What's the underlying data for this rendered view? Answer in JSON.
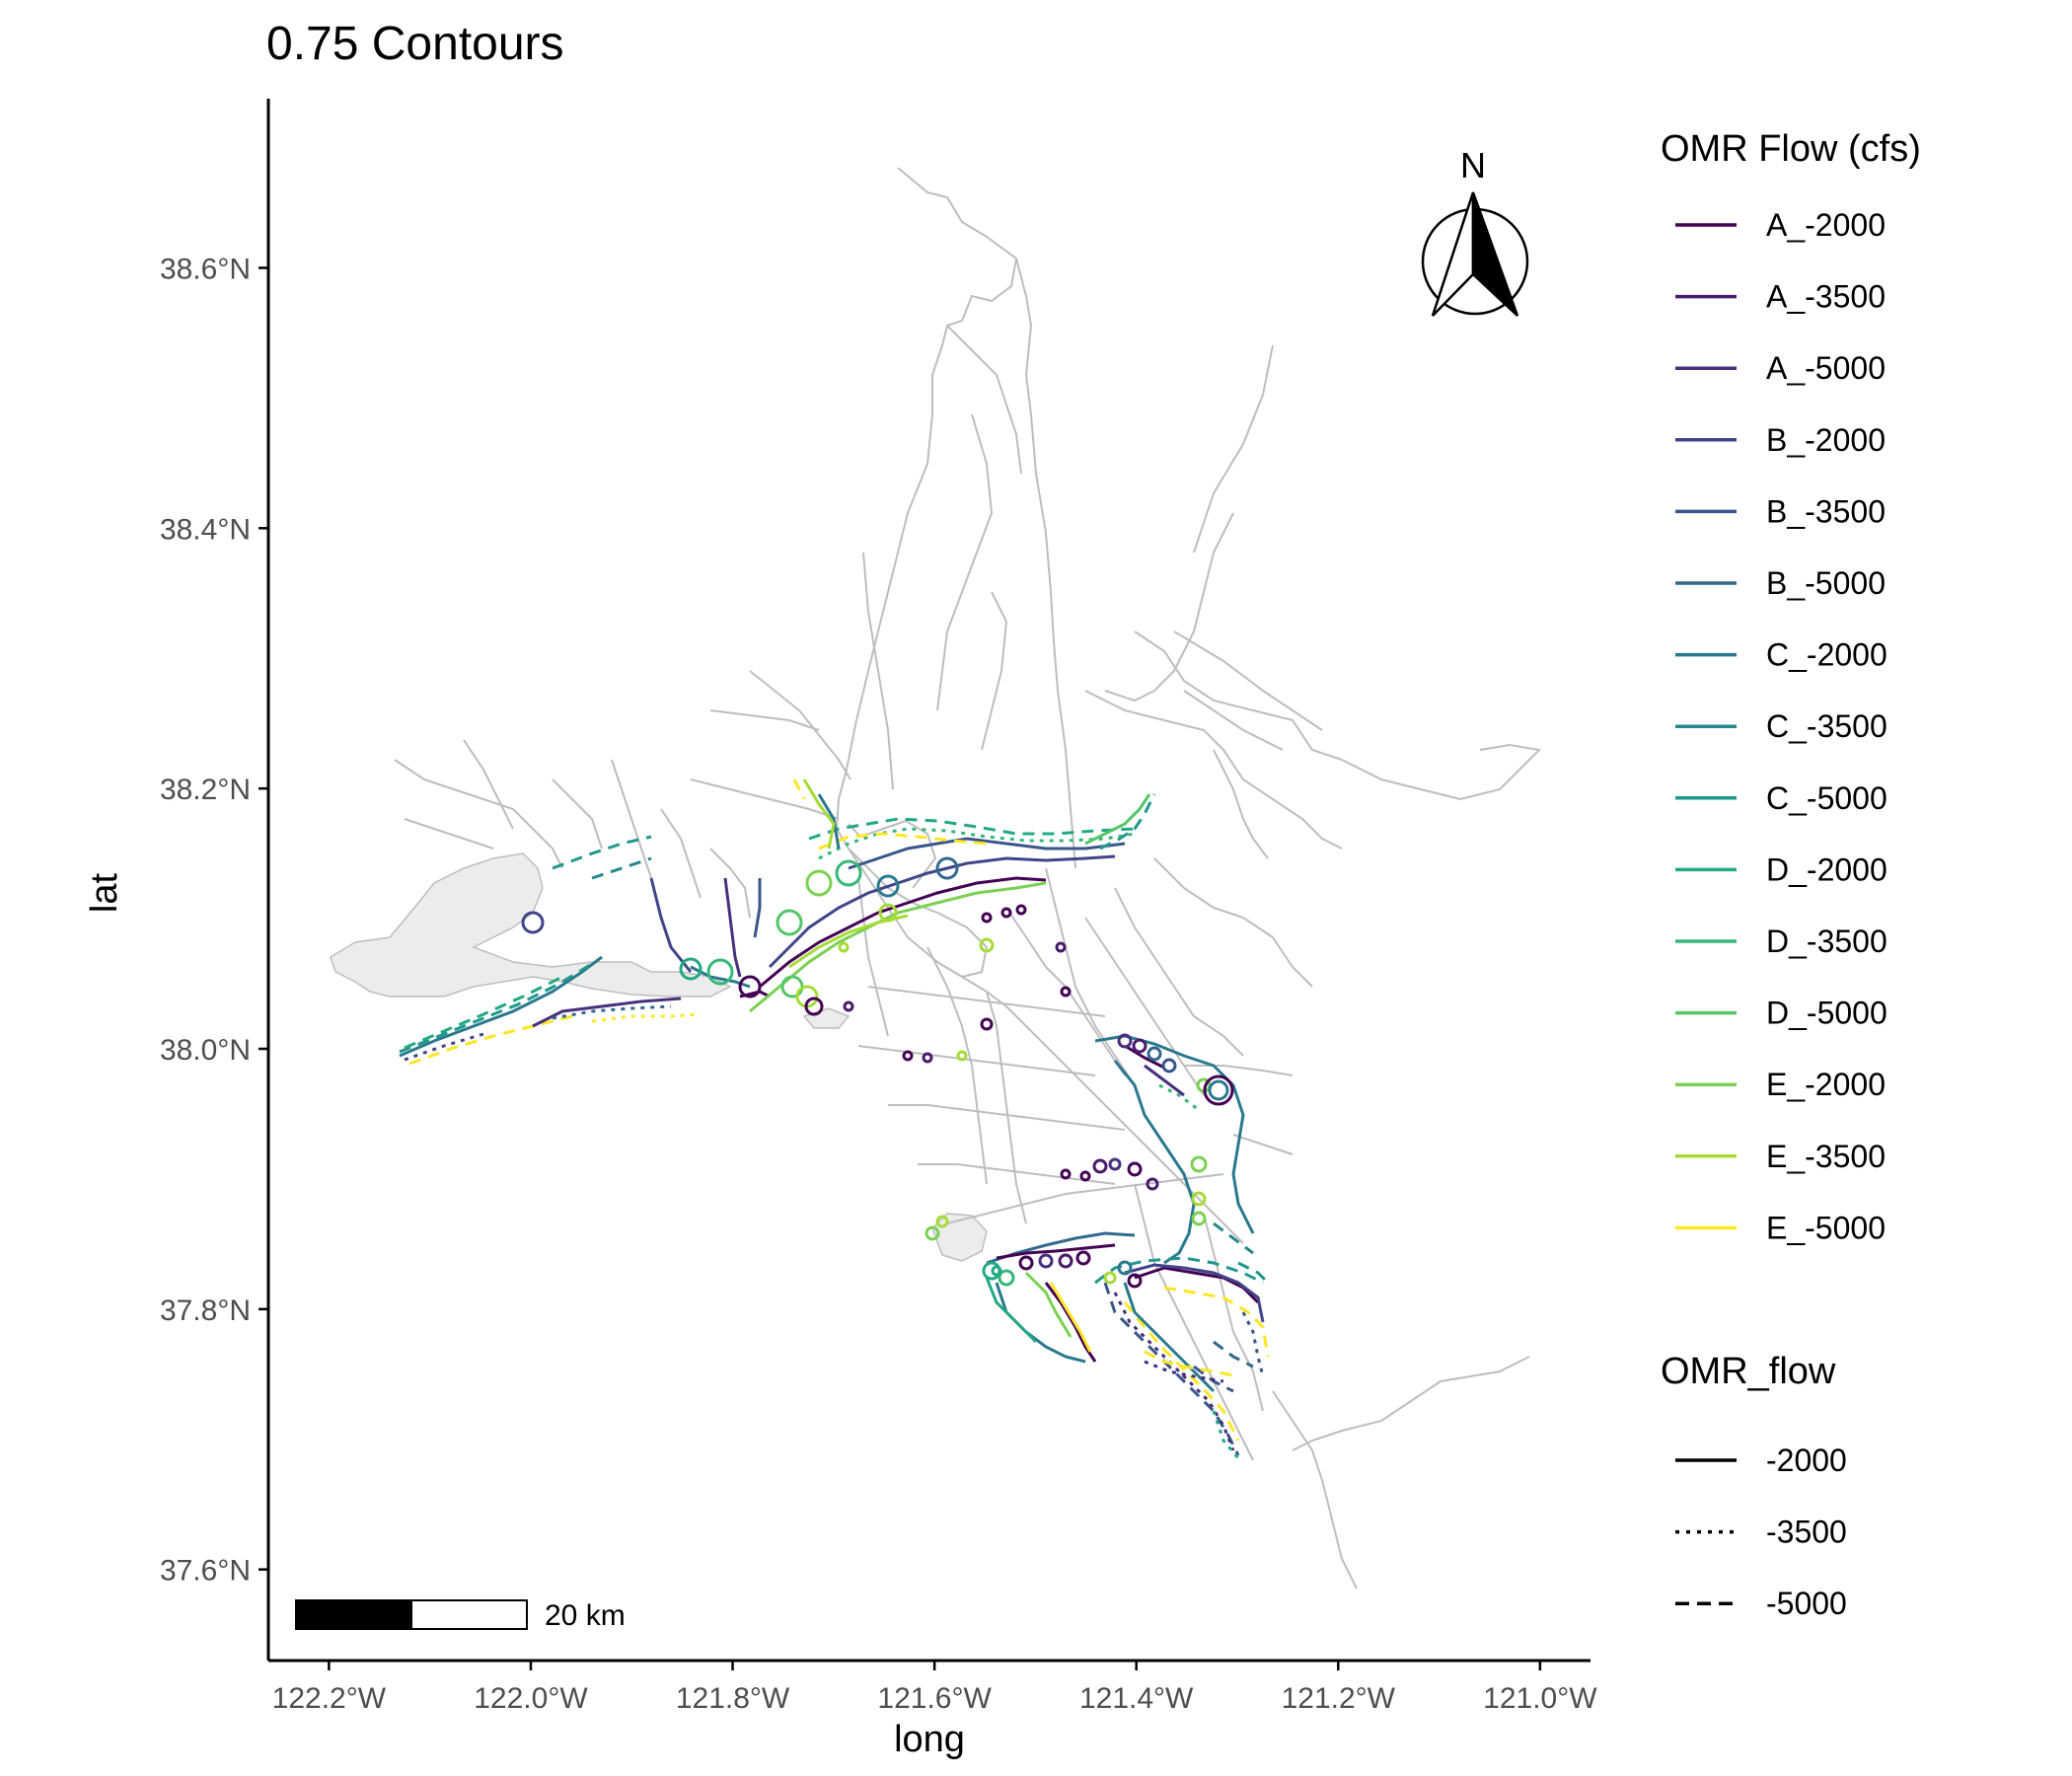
{
  "title": "0.75 Contours",
  "x_axis": {
    "label": "long",
    "ticks": [
      {
        "value": -122.2,
        "label": "122.2°W"
      },
      {
        "value": -122.0,
        "label": "122.0°W"
      },
      {
        "value": -121.8,
        "label": "121.8°W"
      },
      {
        "value": -121.6,
        "label": "121.6°W"
      },
      {
        "value": -121.4,
        "label": "121.4°W"
      },
      {
        "value": -121.2,
        "label": "121.2°W"
      },
      {
        "value": -121.0,
        "label": "121.0°W"
      }
    ],
    "range": [
      -122.26,
      -120.95
    ]
  },
  "y_axis": {
    "label": "lat",
    "ticks": [
      {
        "value": 37.6,
        "label": "37.6°N"
      },
      {
        "value": 37.8,
        "label": "37.8°N"
      },
      {
        "value": 38.0,
        "label": "38.0°N"
      },
      {
        "value": 38.2,
        "label": "38.2°N"
      },
      {
        "value": 38.4,
        "label": "38.4°N"
      },
      {
        "value": 38.6,
        "label": "38.6°N"
      }
    ],
    "range": [
      37.53,
      38.73
    ]
  },
  "north_arrow": {
    "label": "N"
  },
  "scale_bar": {
    "label": "20 km"
  },
  "legend_color": {
    "title": "OMR Flow (cfs)",
    "items": [
      {
        "label": "A_-2000",
        "color": "#440154"
      },
      {
        "label": "A_-3500",
        "color": "#481a6c"
      },
      {
        "label": "A_-5000",
        "color": "#472f7d"
      },
      {
        "label": "B_-2000",
        "color": "#414487"
      },
      {
        "label": "B_-3500",
        "color": "#39568c"
      },
      {
        "label": "B_-5000",
        "color": "#31688e"
      },
      {
        "label": "C_-2000",
        "color": "#2a788e"
      },
      {
        "label": "C_-3500",
        "color": "#23888e"
      },
      {
        "label": "C_-5000",
        "color": "#1f988b"
      },
      {
        "label": "D_-2000",
        "color": "#22a884"
      },
      {
        "label": "D_-3500",
        "color": "#35b779"
      },
      {
        "label": "D_-5000",
        "color": "#54c568"
      },
      {
        "label": "E_-2000",
        "color": "#7ad151"
      },
      {
        "label": "E_-3500",
        "color": "#a5db36"
      },
      {
        "label": "E_-5000",
        "color": "#fde725"
      }
    ]
  },
  "legend_linetype": {
    "title": "OMR_flow",
    "items": [
      {
        "label": "-2000",
        "dash": "solid"
      },
      {
        "label": "-3500",
        "dash": "dotted"
      },
      {
        "label": "-5000",
        "dash": "dashed"
      }
    ]
  },
  "map_features": {
    "water_color": "#bdbdbd",
    "bay_fill": "#ececec",
    "contour_line_colors": "viridis, one per OMR Flow scenario"
  }
}
